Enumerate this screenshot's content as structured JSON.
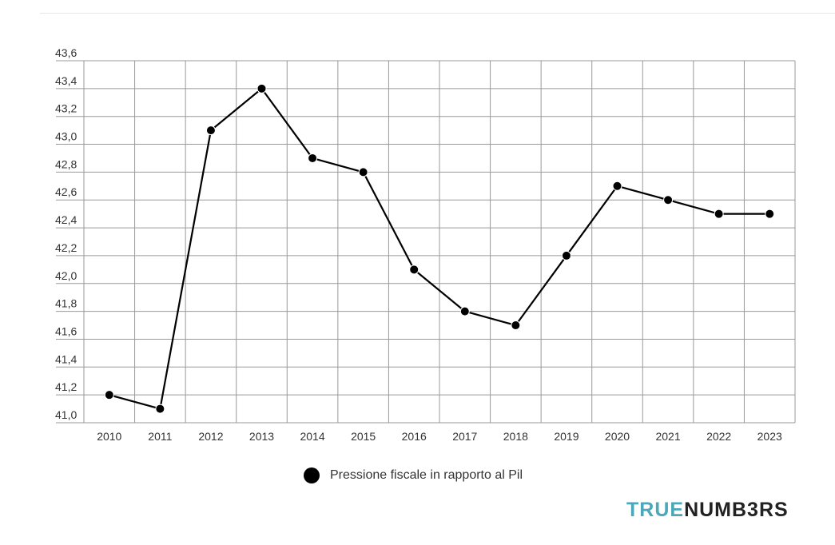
{
  "chart_data": {
    "type": "line",
    "x": [
      "2010",
      "2011",
      "2012",
      "2013",
      "2014",
      "2015",
      "2016",
      "2017",
      "2018",
      "2019",
      "2020",
      "2021",
      "2022",
      "2023"
    ],
    "series": [
      {
        "name": "Pressione fiscale in rapporto al Pil",
        "values": [
          41.2,
          41.1,
          43.1,
          43.4,
          42.9,
          42.8,
          42.1,
          41.8,
          41.7,
          42.2,
          42.7,
          42.6,
          42.5,
          42.5
        ]
      }
    ],
    "ylim": [
      41.0,
      43.6
    ],
    "yticks": [
      "41,0",
      "41,2",
      "41,4",
      "41,6",
      "41,8",
      "42,0",
      "42,2",
      "42,4",
      "42,6",
      "42,8",
      "43,0",
      "43,2",
      "43,4",
      "43,6"
    ],
    "grid": true,
    "legend_position": "bottom-center",
    "line_color": "#000000",
    "grid_color": "#999999"
  },
  "legend": {
    "label": "Pressione fiscale in rapporto al Pil"
  },
  "brand": {
    "part1": "TRUE",
    "part2": "NUMB3RS",
    "accent_color": "#4aa8b8"
  }
}
